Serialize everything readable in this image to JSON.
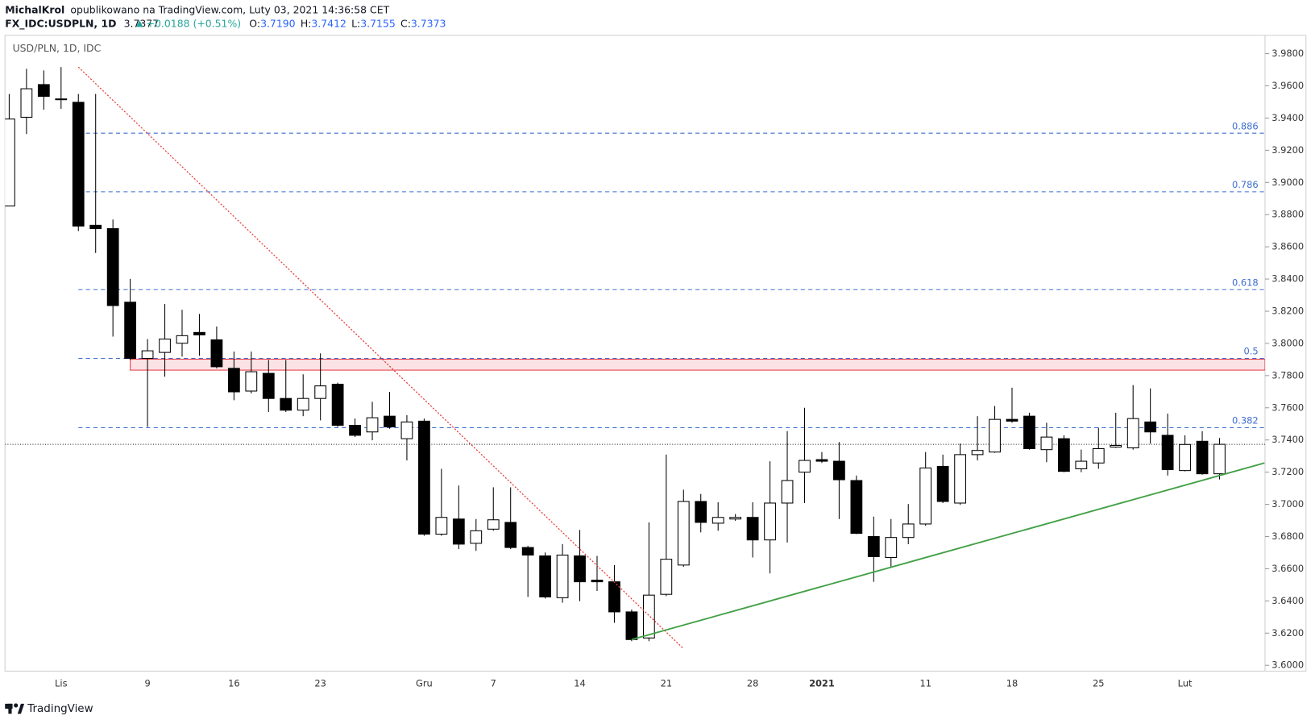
{
  "header": {
    "author": "MichalKrol",
    "published": "opublikowano na TradingView.com, Luty 03, 2021 14:36:58 CET",
    "symbol": "FX_IDC:USDPLN, 1D",
    "last": "3.7377",
    "change": "+0.0188 (+0.51%)",
    "ohlc": [
      {
        "label": "O:",
        "value": "3.7190"
      },
      {
        "label": "H:",
        "value": "3.7412"
      },
      {
        "label": "L:",
        "value": "3.7155"
      },
      {
        "label": "C:",
        "value": "3.7373"
      }
    ]
  },
  "footer": {
    "brand": "TradingView"
  },
  "chart_data": {
    "type": "candlestick",
    "legend_label": "USD/PLN, 1D, IDC",
    "up_color": "#ffffff",
    "down_color": "#000000",
    "categories": [
      null,
      null,
      null,
      "Lis",
      null,
      null,
      null,
      null,
      "9",
      null,
      null,
      null,
      null,
      "16",
      null,
      null,
      null,
      null,
      "23",
      null,
      null,
      null,
      null,
      null,
      "Gru",
      null,
      null,
      null,
      "7",
      null,
      null,
      null,
      null,
      "14",
      null,
      null,
      null,
      null,
      "21",
      null,
      null,
      null,
      null,
      "28",
      null,
      null,
      null,
      "2021",
      null,
      null,
      null,
      null,
      null,
      "11",
      null,
      null,
      null,
      null,
      "18",
      null,
      null,
      null,
      null,
      "25",
      null,
      null,
      null,
      null,
      "Lut",
      null,
      null
    ],
    "open": [
      3.8854,
      3.9405,
      3.9608,
      3.9519,
      3.9498,
      3.8734,
      3.8713,
      3.8256,
      3.7907,
      3.7944,
      3.8001,
      3.8068,
      3.8022,
      3.7845,
      3.7704,
      3.7814,
      3.7658,
      3.7585,
      3.7658,
      3.7746,
      3.7491,
      3.745,
      3.7548,
      3.7408,
      3.7517,
      3.6815,
      3.6909,
      3.6758,
      3.6846,
      3.6888,
      3.6732,
      3.668,
      3.642,
      3.668,
      3.6529,
      3.6519,
      3.6332,
      3.617,
      3.6441,
      3.6623,
      3.7018,
      3.6883,
      3.6909,
      3.6919,
      3.6779,
      3.7008,
      3.72,
      3.7278,
      3.7268,
      3.7148,
      3.68,
      3.667,
      3.6794,
      3.6878,
      3.7236,
      3.7008,
      3.7309,
      3.7325,
      3.7528,
      3.7548,
      3.734,
      3.7408,
      3.7221,
      3.7257,
      3.7356,
      3.7351,
      3.7512,
      3.7429,
      3.721,
      3.7392,
      3.719
    ],
    "high": [
      3.955,
      3.9706,
      3.9696,
      3.9717,
      3.955,
      3.955,
      3.877,
      3.8401,
      3.8027,
      3.8245,
      3.8209,
      3.8183,
      3.8105,
      3.7949,
      3.7949,
      3.7897,
      3.7897,
      3.7808,
      3.7938,
      3.7756,
      3.7533,
      3.7637,
      3.7699,
      3.7554,
      3.7533,
      3.7221,
      3.7117,
      3.6909,
      3.7106,
      3.7106,
      3.6742,
      3.6701,
      3.6753,
      3.6841,
      3.668,
      3.6623,
      3.6347,
      3.6888,
      3.7309,
      3.7091,
      3.7065,
      3.7013,
      3.694,
      3.7013,
      3.7268,
      3.7455,
      3.76,
      3.7325,
      3.7387,
      3.7179,
      3.6924,
      3.6909,
      3.7002,
      3.7325,
      3.7309,
      3.7377,
      3.7548,
      3.7611,
      3.7725,
      3.7569,
      3.7507,
      3.7429,
      3.734,
      3.7476,
      3.7569,
      3.7741,
      3.772,
      3.7564,
      3.7429,
      3.7455,
      3.7412
    ],
    "low": [
      3.8854,
      3.9301,
      3.9452,
      3.9457,
      3.8698,
      3.8562,
      3.8042,
      3.7897,
      3.7481,
      3.7793,
      3.7918,
      3.7923,
      3.7845,
      3.7647,
      3.7689,
      3.7574,
      3.7574,
      3.7548,
      3.7522,
      3.7481,
      3.7418,
      3.7398,
      3.747,
      3.7273,
      3.6805,
      3.6805,
      3.6722,
      3.6711,
      3.6836,
      3.6722,
      3.6425,
      3.6415,
      3.6389,
      3.6399,
      3.6462,
      3.6264,
      3.615,
      3.615,
      3.643,
      3.6612,
      3.6826,
      3.6836,
      3.6898,
      3.667,
      3.6571,
      3.6763,
      3.7008,
      3.7257,
      3.6909,
      3.6815,
      3.6519,
      3.6612,
      3.6753,
      3.6867,
      3.7008,
      3.6997,
      3.7273,
      3.732,
      3.7507,
      3.734,
      3.7262,
      3.72,
      3.72,
      3.7221,
      3.7351,
      3.734,
      3.7377,
      3.7179,
      3.7205,
      3.7184,
      3.7155
    ],
    "close": [
      3.9394,
      3.9582,
      3.9535,
      3.9517,
      3.8729,
      3.8713,
      3.8235,
      3.7907,
      3.7954,
      3.8027,
      3.8048,
      3.8053,
      3.7855,
      3.7699,
      3.7824,
      3.7658,
      3.7585,
      3.7658,
      3.7736,
      3.7491,
      3.7429,
      3.7538,
      3.7481,
      3.7512,
      3.6815,
      3.6919,
      3.6753,
      3.6836,
      3.6904,
      3.6732,
      3.6685,
      3.6425,
      3.6685,
      3.6519,
      3.6519,
      3.6332,
      3.616,
      3.6436,
      3.6659,
      3.7018,
      3.6888,
      3.6919,
      3.6919,
      3.6779,
      3.7008,
      3.7148,
      3.7273,
      3.7268,
      3.7153,
      3.682,
      3.6675,
      3.6794,
      3.6878,
      3.7226,
      3.7018,
      3.7309,
      3.7335,
      3.7528,
      3.7517,
      3.7346,
      3.7418,
      3.7205,
      3.7268,
      3.7346,
      3.7366,
      3.7533,
      3.745,
      3.7216,
      3.7372,
      3.719,
      3.7373
    ],
    "ylim": [
      3.5964,
      3.9914
    ],
    "yticks": [
      {
        "value": 3.6,
        "label": "3.6000"
      },
      {
        "value": 3.62,
        "label": "3.6200"
      },
      {
        "value": 3.64,
        "label": "3.6400"
      },
      {
        "value": 3.66,
        "label": "3.6600"
      },
      {
        "value": 3.68,
        "label": "3.6800"
      },
      {
        "value": 3.7,
        "label": "3.7000"
      },
      {
        "value": 3.72,
        "label": "3.7200"
      },
      {
        "value": 3.74,
        "label": "3.7400"
      },
      {
        "value": 3.76,
        "label": "3.7600"
      },
      {
        "value": 3.78,
        "label": "3.7800"
      },
      {
        "value": 3.8,
        "label": "3.8000"
      },
      {
        "value": 3.82,
        "label": "3.8200"
      },
      {
        "value": 3.84,
        "label": "3.8400"
      },
      {
        "value": 3.86,
        "label": "3.8600"
      },
      {
        "value": 3.88,
        "label": "3.8800"
      },
      {
        "value": 3.9,
        "label": "3.9000"
      },
      {
        "value": 3.92,
        "label": "3.9200"
      },
      {
        "value": 3.94,
        "label": "3.9400"
      },
      {
        "value": 3.96,
        "label": "3.9600"
      },
      {
        "value": 3.98,
        "label": "3.9800"
      }
    ],
    "fib_color": "#3f6fd0",
    "fib_from_index": 4,
    "fib_levels": [
      {
        "label": "0.886",
        "value": 3.9306
      },
      {
        "label": "0.786",
        "value": 3.8942
      },
      {
        "label": "0.618",
        "value": 3.8334
      },
      {
        "label": "0.5",
        "value": 3.7907
      },
      {
        "label": "0.382",
        "value": 3.7476
      }
    ],
    "zone": {
      "from_index": 7,
      "low": 3.7834,
      "high": 3.7902,
      "color": "#e53945"
    },
    "drawings": [
      {
        "color": "#e53935",
        "style": "dotted",
        "from": [
          4,
          3.9717
        ],
        "to": [
          39,
          3.6103
        ]
      },
      {
        "color": "#43a047",
        "style": "solid",
        "from": [
          36,
          3.616
        ],
        "to": [
          72.6,
          3.7257
        ]
      }
    ]
  }
}
